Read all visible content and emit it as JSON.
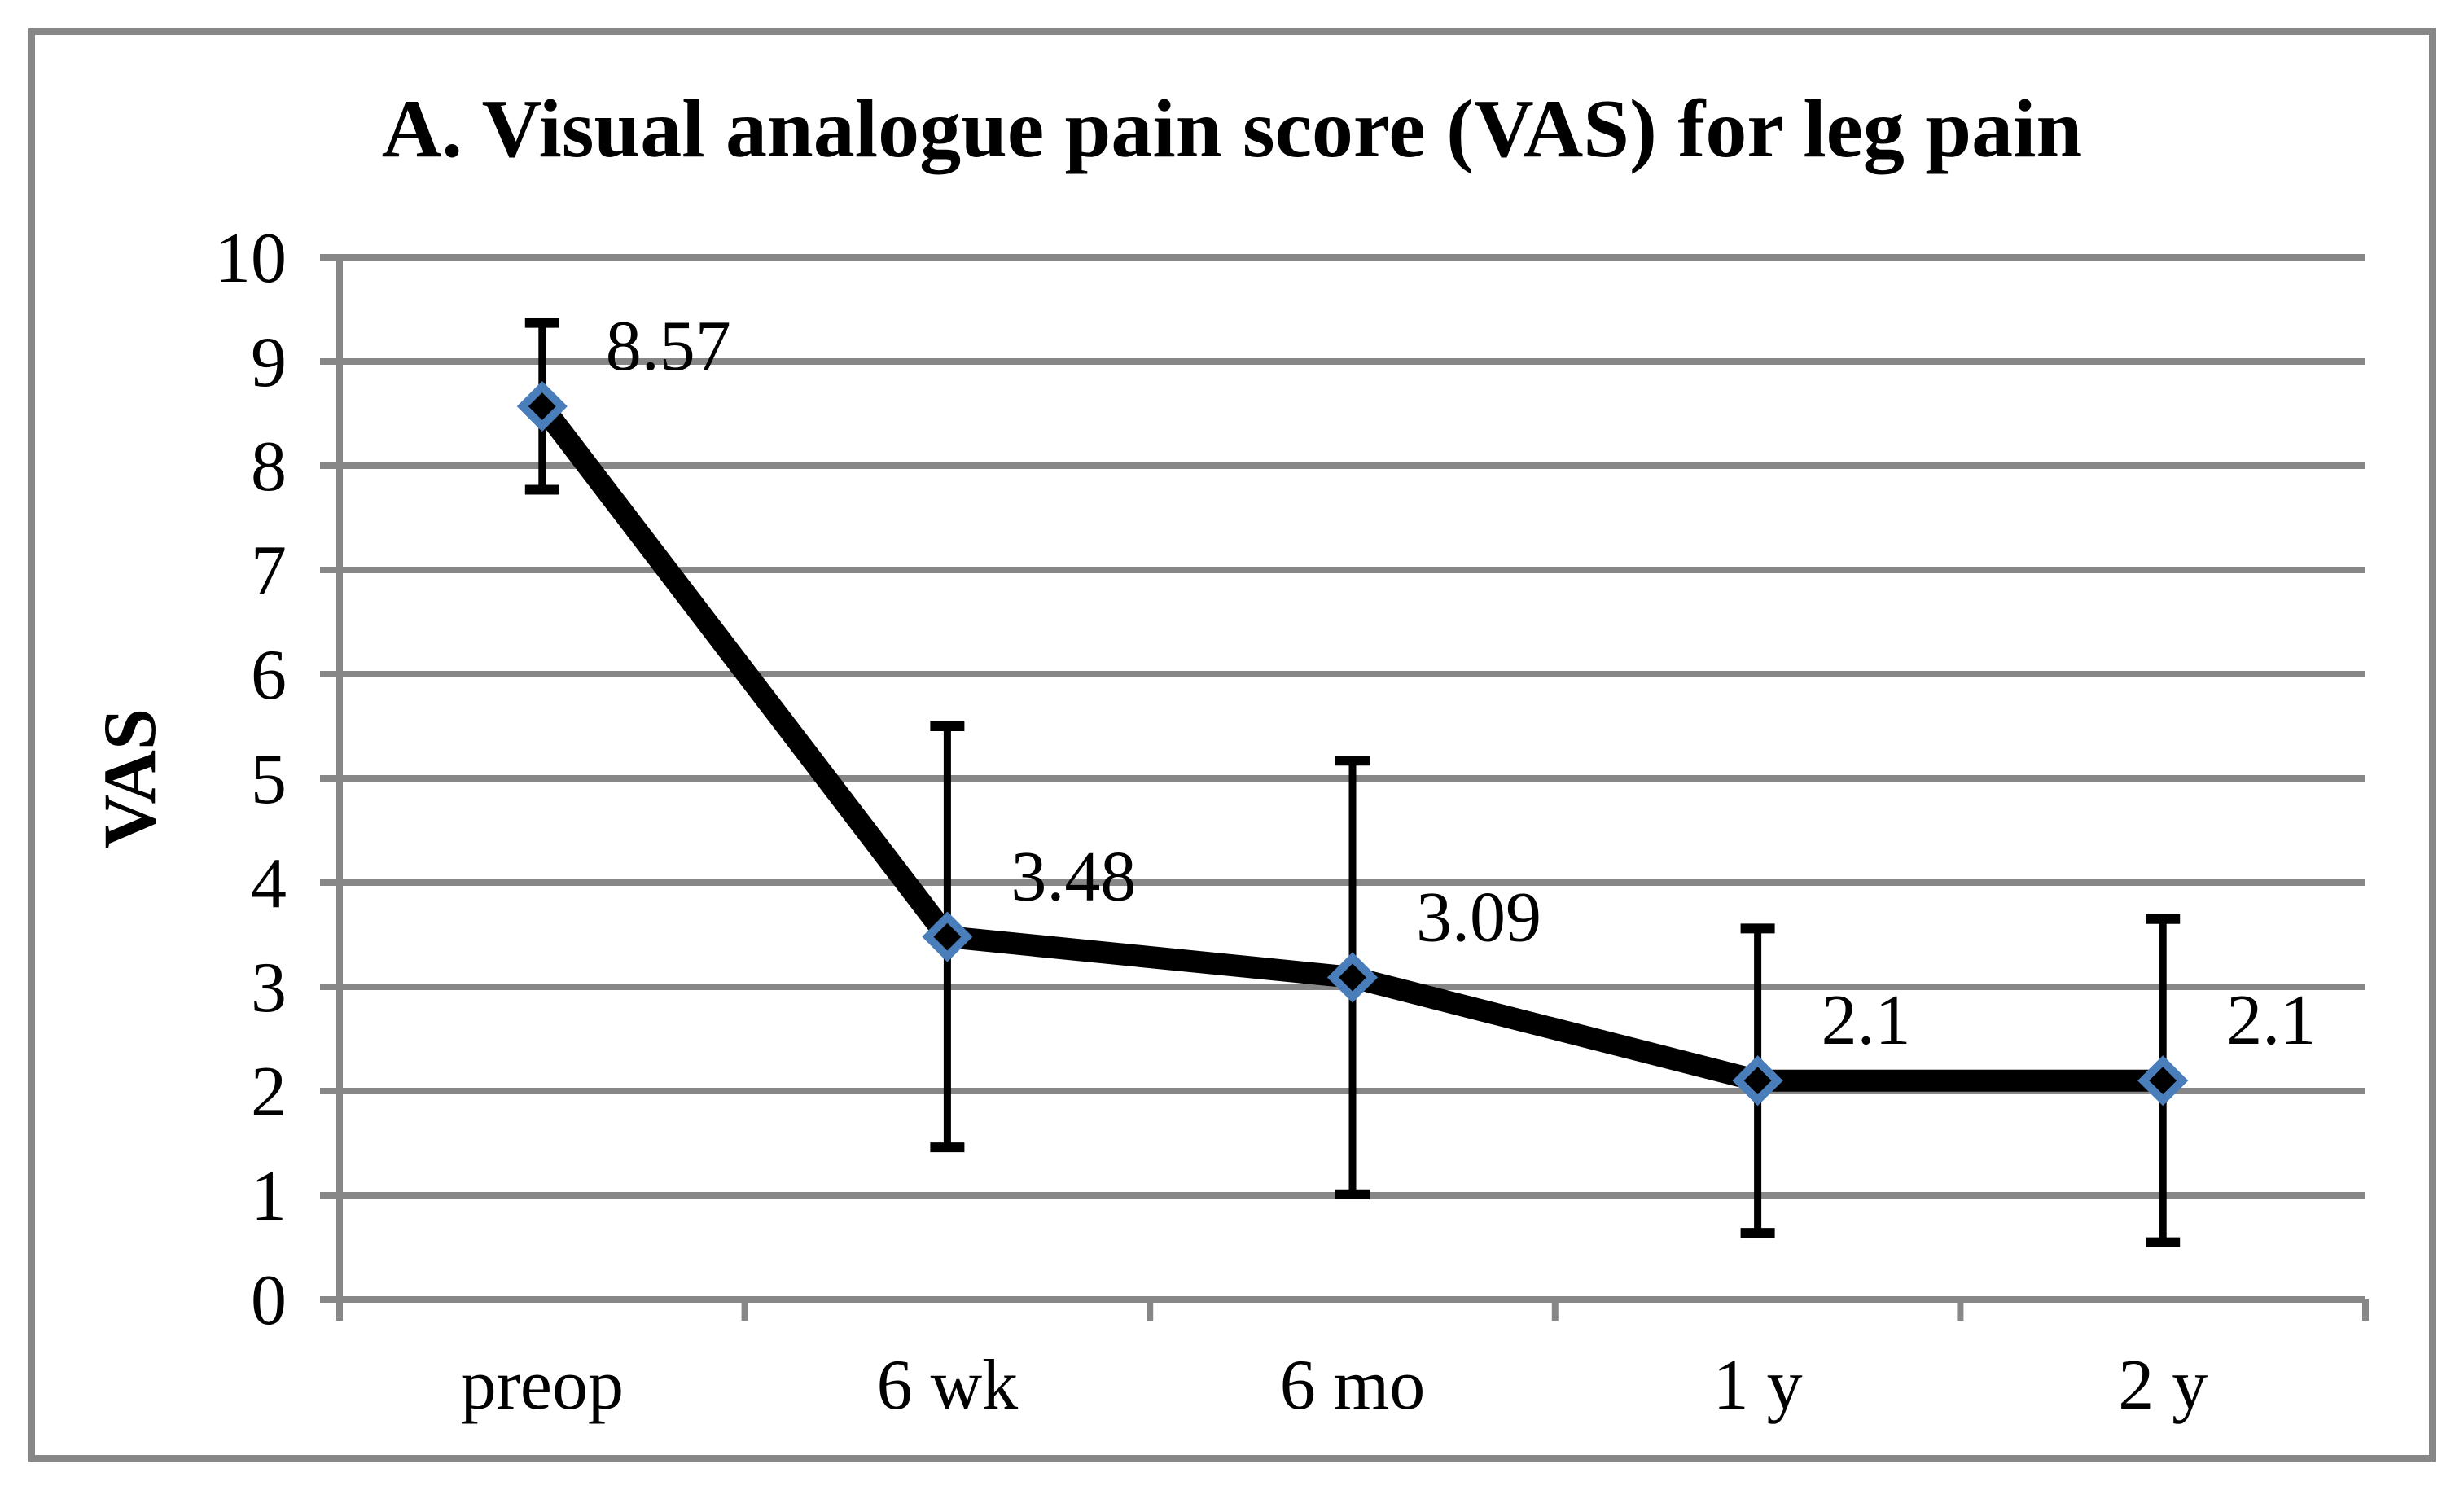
{
  "figure": {
    "background": "#FFFFFF",
    "border_color": "#878787"
  },
  "chart_data": {
    "type": "line",
    "title": "A. Visual analogue pain score (VAS) for leg pain",
    "ylabel": "VAS",
    "xlabel": "",
    "categories": [
      "preop",
      "6 wk",
      "6 mo",
      "1 y",
      "2 y"
    ],
    "series": [
      {
        "values": [
          8.57,
          3.48,
          3.09,
          2.1,
          2.1
        ],
        "data_labels": [
          "8.57",
          "3.48",
          "3.09",
          "2.1",
          "2.1"
        ],
        "error_bars": {
          "upper": [
            0.8,
            2.02,
            2.08,
            1.46,
            1.55
          ],
          "lower": [
            0.8,
            2.02,
            2.08,
            1.46,
            1.55
          ]
        }
      }
    ],
    "ylim": [
      0,
      10
    ],
    "yticks": [
      0,
      1,
      2,
      3,
      4,
      5,
      6,
      7,
      8,
      9,
      10
    ],
    "grid": true,
    "legend": false,
    "colors": {
      "line": "#000000",
      "marker_fill": "#000000",
      "marker_border": "#4A7EBB",
      "grid": "#878787",
      "text": "#000000"
    }
  }
}
